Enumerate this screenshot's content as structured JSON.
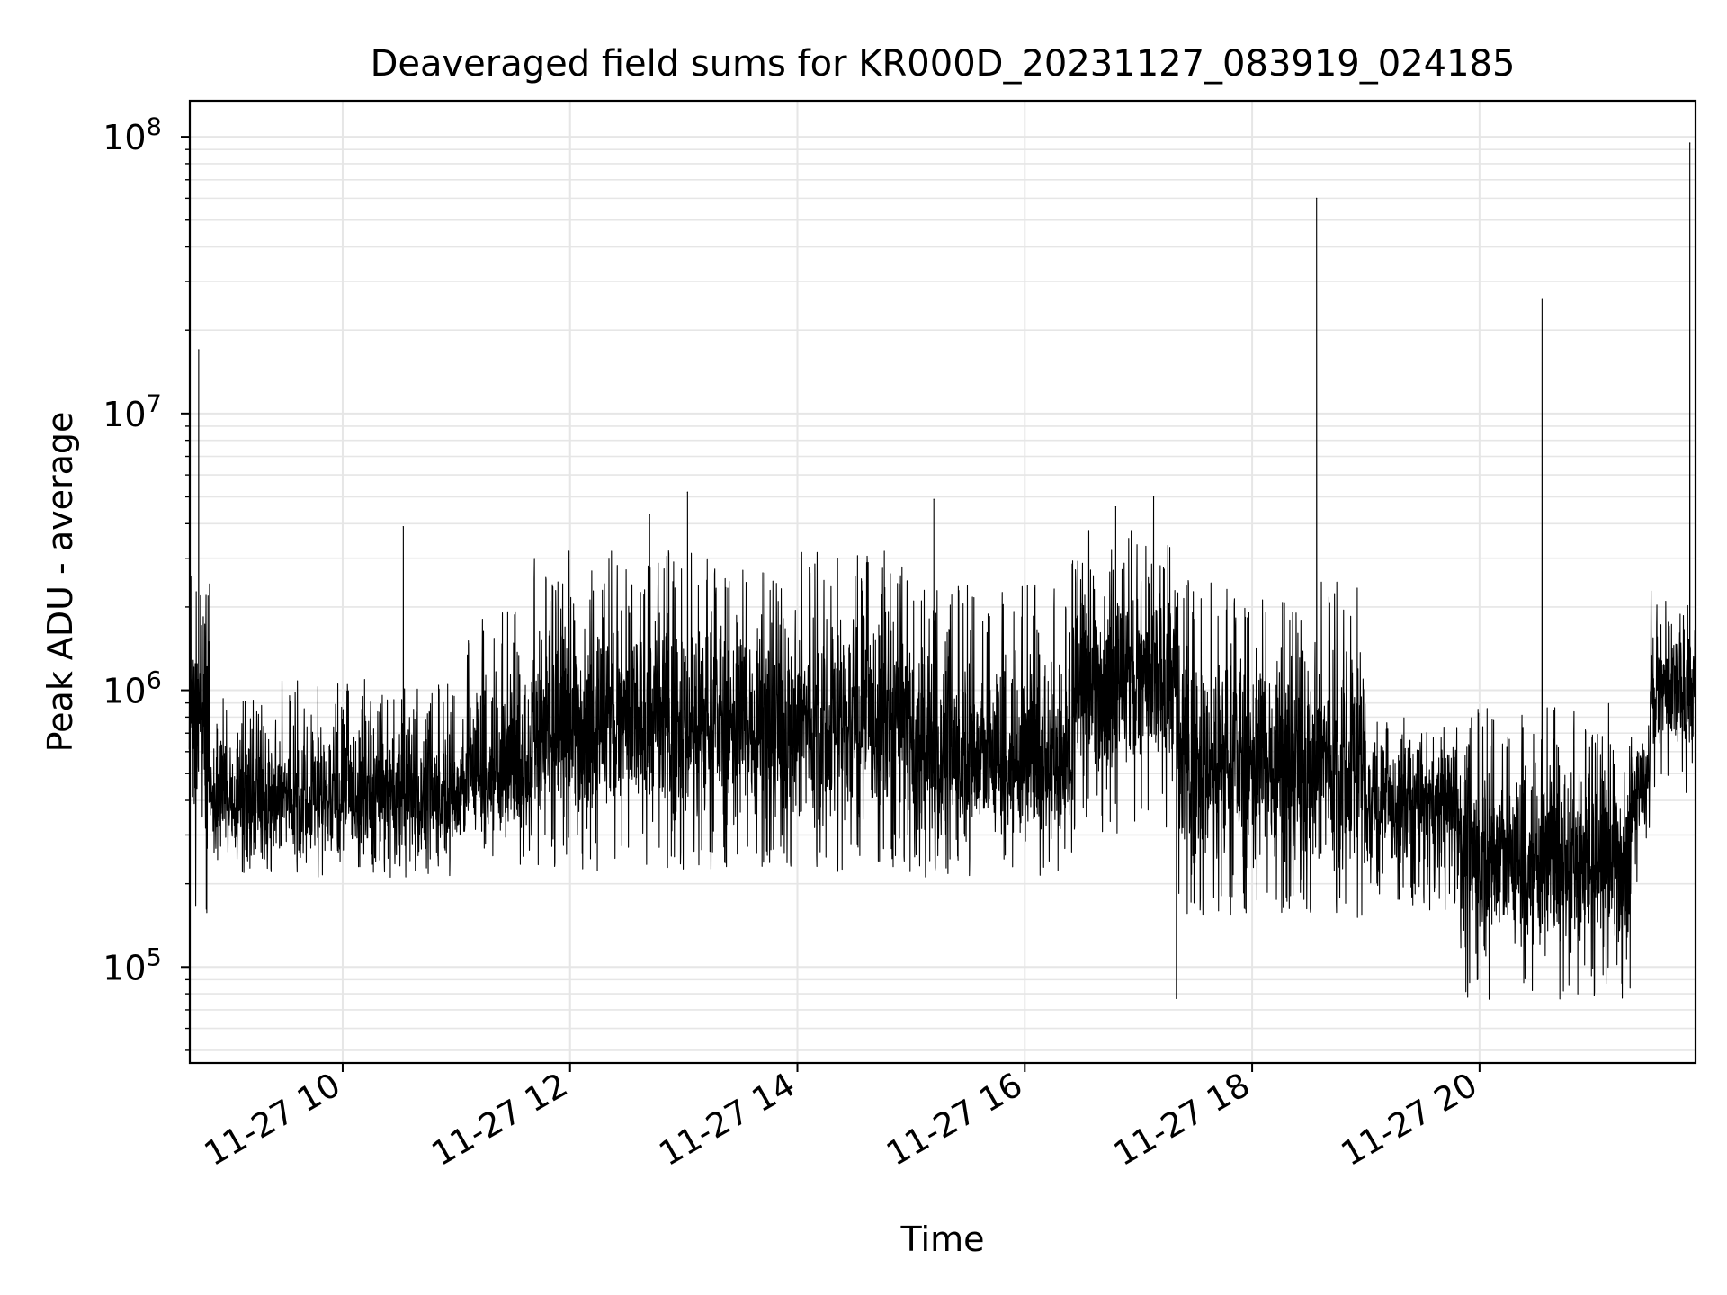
{
  "chart_data": {
    "type": "line",
    "title": "Deaveraged field sums for KR000D_20231127_083919_024185",
    "xlabel": "Time",
    "ylabel": "Peak ADU - average",
    "x_axis": {
      "kind": "time",
      "range": [
        "2023-11-27T08:39:19",
        "2023-11-27T21:54:00"
      ],
      "tick_times": [
        "2023-11-27T10:00",
        "2023-11-27T12:00",
        "2023-11-27T14:00",
        "2023-11-27T16:00",
        "2023-11-27T18:00",
        "2023-11-27T20:00"
      ],
      "tick_labels": [
        "11-27 10",
        "11-27 12",
        "11-27 14",
        "11-27 16",
        "11-27 18",
        "11-27 20"
      ],
      "tick_label_rotation_deg": 30
    },
    "y_axis": {
      "scale": "log",
      "range": [
        45000,
        135000000
      ],
      "major_ticks": [
        100000,
        1000000,
        10000000,
        100000000
      ],
      "tick_labels": [
        {
          "base": "10",
          "exp": "5"
        },
        {
          "base": "10",
          "exp": "6"
        },
        {
          "base": "10",
          "exp": "7"
        },
        {
          "base": "10",
          "exp": "8"
        }
      ]
    },
    "grid": true,
    "grid_minor": true,
    "line_color": "#000000",
    "grid_color": "#e6e6e6",
    "segments": [
      {
        "start": "08:39",
        "end": "08:50",
        "low": 150000,
        "high": 3000000,
        "median": 900000
      },
      {
        "start": "08:50",
        "end": "11:05",
        "low": 210000,
        "high": 1100000,
        "median": 400000
      },
      {
        "start": "11:05",
        "end": "11:40",
        "low": 230000,
        "high": 2000000,
        "median": 500000
      },
      {
        "start": "11:40",
        "end": "15:00",
        "low": 220000,
        "high": 3200000,
        "median": 750000
      },
      {
        "start": "15:00",
        "end": "16:25",
        "low": 210000,
        "high": 2500000,
        "median": 550000
      },
      {
        "start": "16:25",
        "end": "17:20",
        "low": 300000,
        "high": 3800000,
        "median": 1100000
      },
      {
        "start": "17:20",
        "end": "19:00",
        "low": 150000,
        "high": 2500000,
        "median": 550000
      },
      {
        "start": "19:00",
        "end": "19:50",
        "low": 160000,
        "high": 800000,
        "median": 380000
      },
      {
        "start": "19:50",
        "end": "21:20",
        "low": 75000,
        "high": 900000,
        "median": 250000
      },
      {
        "start": "21:20",
        "end": "21:30",
        "low": 200000,
        "high": 800000,
        "median": 450000
      },
      {
        "start": "21:30",
        "end": "21:54",
        "low": 400000,
        "high": 2300000,
        "median": 1000000
      }
    ],
    "spikes": [
      {
        "time": "08:44",
        "value": 17000000
      },
      {
        "time": "10:32",
        "value": 3900000
      },
      {
        "time": "12:42",
        "value": 4300000
      },
      {
        "time": "13:02",
        "value": 5200000
      },
      {
        "time": "15:12",
        "value": 4900000
      },
      {
        "time": "16:48",
        "value": 4600000
      },
      {
        "time": "17:08",
        "value": 5000000
      },
      {
        "time": "17:20",
        "value": 77000
      },
      {
        "time": "18:34",
        "value": 60000000
      },
      {
        "time": "20:33",
        "value": 26000000
      },
      {
        "time": "21:51",
        "value": 95000000
      }
    ]
  }
}
